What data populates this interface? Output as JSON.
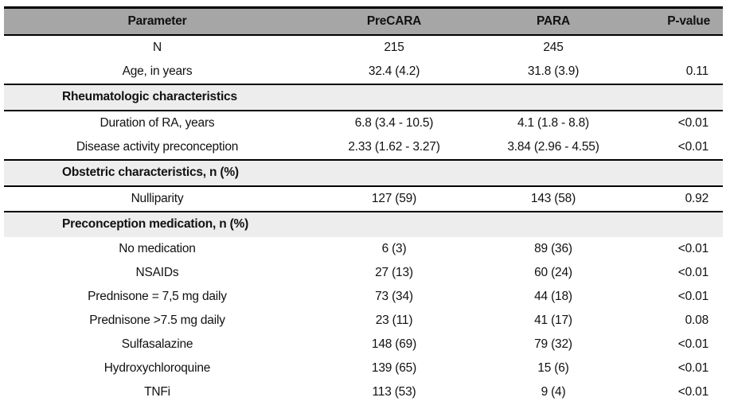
{
  "table": {
    "columns": [
      "Parameter",
      "PreCARA",
      "PARA",
      "P-value"
    ],
    "rows": [
      {
        "type": "data",
        "param": "N",
        "precara": "215",
        "para": "245",
        "p": ""
      },
      {
        "type": "data",
        "param": "Age, in years",
        "precara": "32.4 (4.2)",
        "para": "31.8 (3.9)",
        "p": "0.11"
      },
      {
        "type": "section",
        "param": "Rheumatologic characteristics"
      },
      {
        "type": "data",
        "param": "Duration of RA, years",
        "precara": "6.8 (3.4 - 10.5)",
        "para": "4.1 (1.8 - 8.8)",
        "p": "<0.01"
      },
      {
        "type": "data",
        "param": "Disease activity preconception",
        "precara": "2.33 (1.62 - 3.27)",
        "para": "3.84 (2.96 - 4.55)",
        "p": "<0.01"
      },
      {
        "type": "section",
        "param": "Obstetric characteristics, n (%)"
      },
      {
        "type": "data",
        "param": "Nulliparity",
        "precara": "127 (59)",
        "para": "143 (58)",
        "p": "0.92"
      },
      {
        "type": "section",
        "param": "Preconception medication, n (%)"
      },
      {
        "type": "data",
        "param": "No medication",
        "precara": "6 (3)",
        "para": "89 (36)",
        "p": "<0.01"
      },
      {
        "type": "data",
        "param": "NSAIDs",
        "precara": "27 (13)",
        "para": "60 (24)",
        "p": "<0.01"
      },
      {
        "type": "data",
        "param": "Prednisone = 7,5 mg daily",
        "precara": "73 (34)",
        "para": "44 (18)",
        "p": "<0.01"
      },
      {
        "type": "data",
        "param": "Prednisone >7.5 mg daily",
        "precara": "23 (11)",
        "para": "41 (17)",
        "p": "0.08"
      },
      {
        "type": "data",
        "param": "Sulfasalazine",
        "precara": "148 (69)",
        "para": "79 (32)",
        "p": "<0.01"
      },
      {
        "type": "data",
        "param": "Hydroxychloroquine",
        "precara": "139 (65)",
        "para": "15 (6)",
        "p": "<0.01"
      },
      {
        "type": "data",
        "param": "TNFi",
        "precara": "113 (53)",
        "para": "9 (4)",
        "p": "<0.01"
      }
    ],
    "colors": {
      "header_bg": "#a6a6a6",
      "section_bg": "#ededed",
      "border": "#000000",
      "text": "#111111"
    }
  }
}
